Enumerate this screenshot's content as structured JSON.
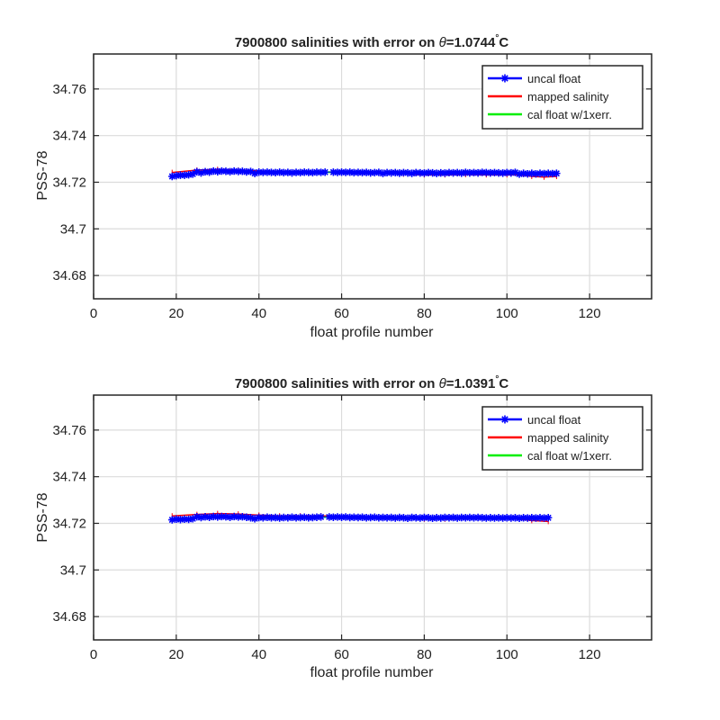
{
  "chart_data": [
    {
      "type": "line",
      "title_prefix": "7900800 salinities with error on ",
      "title_theta": "θ",
      "title_value": "=1.0744",
      "title_deg": "°",
      "title_unit": "C",
      "xlabel": "float profile number",
      "ylabel": "PSS-78",
      "xlim": [
        0,
        135
      ],
      "ylim": [
        34.67,
        34.775
      ],
      "x_ticks": [
        0,
        20,
        40,
        60,
        80,
        100,
        120
      ],
      "x_tick_labels": [
        "0",
        "20",
        "40",
        "60",
        "80",
        "100",
        "120"
      ],
      "y_ticks": [
        34.68,
        34.7,
        34.72,
        34.74,
        34.76
      ],
      "y_tick_labels": [
        "34.68",
        "34.7",
        "34.72",
        "34.74",
        "34.76"
      ],
      "grid": true,
      "legend_position": "top-right",
      "series": [
        {
          "name": "uncal float",
          "color": "#0000ff",
          "marker": "asterisk",
          "segments": [
            {
              "x": [
                19,
                20,
                21,
                22,
                23,
                24,
                25,
                26,
                27,
                28,
                29,
                30,
                31,
                32,
                33,
                34,
                35,
                36,
                37,
                38,
                39,
                40,
                41,
                42,
                43,
                44,
                45,
                46,
                47,
                48,
                49,
                50,
                51,
                52,
                53,
                54,
                55,
                56
              ],
              "y": [
                34.7225,
                34.7228,
                34.723,
                34.723,
                34.7232,
                34.7235,
                34.7245,
                34.724,
                34.7245,
                34.7243,
                34.7248,
                34.7245,
                34.7248,
                34.7247,
                34.7245,
                34.7248,
                34.7246,
                34.7247,
                34.7244,
                34.7246,
                34.7238,
                34.7243,
                34.7242,
                34.7243,
                34.7242,
                34.7241,
                34.7243,
                34.7241,
                34.7242,
                34.724,
                34.7242,
                34.7241,
                34.7243,
                34.7242,
                34.7241,
                34.7243,
                34.7242,
                34.7243
              ]
            },
            {
              "x": [
                58,
                59,
                60,
                61,
                62,
                63,
                64,
                65,
                66,
                67,
                68,
                69,
                70,
                71,
                72,
                73,
                74,
                75,
                76,
                77,
                78,
                79,
                80,
                81,
                82,
                83,
                84,
                85,
                86,
                87,
                88,
                89,
                90,
                91,
                92,
                93,
                94,
                95,
                96,
                97,
                98,
                99,
                100,
                101,
                102,
                103,
                104,
                105,
                106,
                107,
                108,
                109,
                110,
                111,
                112
              ],
              "y": [
                34.7243,
                34.7242,
                34.7243,
                34.7242,
                34.7243,
                34.7241,
                34.7242,
                34.7241,
                34.7242,
                34.724,
                34.7241,
                34.7242,
                34.7238,
                34.7241,
                34.724,
                34.7241,
                34.7239,
                34.7241,
                34.724,
                34.7238,
                34.7241,
                34.724,
                34.7239,
                34.7241,
                34.724,
                34.7238,
                34.724,
                34.7239,
                34.7241,
                34.724,
                34.7241,
                34.7239,
                34.7242,
                34.724,
                34.7241,
                34.724,
                34.7242,
                34.7241,
                34.724,
                34.7241,
                34.724,
                34.7239,
                34.7241,
                34.724,
                34.7242,
                34.7235,
                34.7238,
                34.7236,
                34.7238,
                34.7236,
                34.7238,
                34.7237,
                34.7238,
                34.7237,
                34.7238
              ]
            }
          ]
        },
        {
          "name": "mapped salinity",
          "color": "#ff0000",
          "x": [
            19,
            25,
            30,
            35,
            40,
            45,
            50,
            55,
            60,
            65,
            70,
            75,
            80,
            85,
            90,
            95,
            100,
            103,
            106,
            109,
            112
          ],
          "y": [
            34.7242,
            34.7252,
            34.7255,
            34.7252,
            34.7248,
            34.7246,
            34.7245,
            34.7244,
            34.7243,
            34.724,
            34.7238,
            34.7235,
            34.7232,
            34.7232,
            34.7233,
            34.7232,
            34.7232,
            34.7232,
            34.7225,
            34.7222,
            34.7225
          ]
        },
        {
          "name": "cal float w/1xerr.",
          "color": "#00ee00",
          "x": [
            56,
            57,
            58
          ],
          "y": [
            34.7243,
            34.7243,
            34.7243
          ]
        }
      ]
    },
    {
      "type": "line",
      "title_prefix": "7900800 salinities with error on ",
      "title_theta": "θ",
      "title_value": "=1.0391",
      "title_deg": "°",
      "title_unit": "C",
      "xlabel": "float profile number",
      "ylabel": "PSS-78",
      "xlim": [
        0,
        135
      ],
      "ylim": [
        34.67,
        34.775
      ],
      "x_ticks": [
        0,
        20,
        40,
        60,
        80,
        100,
        120
      ],
      "x_tick_labels": [
        "0",
        "20",
        "40",
        "60",
        "80",
        "100",
        "120"
      ],
      "y_ticks": [
        34.68,
        34.7,
        34.72,
        34.74,
        34.76
      ],
      "y_tick_labels": [
        "34.68",
        "34.7",
        "34.72",
        "34.74",
        "34.76"
      ],
      "grid": true,
      "legend_position": "top-right",
      "series": [
        {
          "name": "uncal float",
          "color": "#0000ff",
          "marker": "asterisk",
          "segments": [
            {
              "x": [
                19,
                20,
                21,
                22,
                23,
                24,
                25,
                26,
                27,
                28,
                29,
                30,
                31,
                32,
                33,
                34,
                35,
                36,
                37,
                38,
                39,
                40,
                41,
                42,
                43,
                44,
                45,
                46,
                47,
                48,
                49,
                50,
                51,
                52,
                53,
                54,
                55
              ],
              "y": [
                34.7215,
                34.7218,
                34.7216,
                34.7218,
                34.7217,
                34.722,
                34.7228,
                34.7225,
                34.7228,
                34.7226,
                34.7229,
                34.7227,
                34.7229,
                34.7228,
                34.7226,
                34.7229,
                34.7227,
                34.7228,
                34.7226,
                34.7224,
                34.722,
                34.7225,
                34.7224,
                34.7226,
                34.7224,
                34.7225,
                34.7223,
                34.7225,
                34.7224,
                34.7226,
                34.7224,
                34.7225,
                34.7226,
                34.7224,
                34.7225,
                34.7226,
                34.7227
              ]
            },
            {
              "x": [
                57,
                58,
                59,
                60,
                61,
                62,
                63,
                64,
                65,
                66,
                67,
                68,
                69,
                70,
                71,
                72,
                73,
                74,
                75,
                76,
                77,
                78,
                79,
                80,
                81,
                82,
                83,
                84,
                85,
                86,
                87,
                88,
                89,
                90,
                91,
                92,
                93,
                94,
                95,
                96,
                97,
                98,
                99,
                100,
                101,
                102,
                103,
                104,
                105,
                106,
                107,
                108,
                109,
                110
              ],
              "y": [
                34.7227,
                34.7226,
                34.7227,
                34.7226,
                34.7227,
                34.7225,
                34.7226,
                34.7225,
                34.7226,
                34.7224,
                34.7225,
                34.7226,
                34.7224,
                34.7225,
                34.7224,
                34.7225,
                34.7223,
                34.7225,
                34.7224,
                34.7222,
                34.7225,
                34.7224,
                34.7223,
                34.7225,
                34.7224,
                34.7222,
                34.7224,
                34.7223,
                34.7225,
                34.7224,
                34.7225,
                34.7223,
                34.7225,
                34.7224,
                34.7225,
                34.7224,
                34.7225,
                34.7224,
                34.7223,
                34.7224,
                34.7223,
                34.7224,
                34.7223,
                34.7224,
                34.7223,
                34.7224,
                34.7222,
                34.7224,
                34.7223,
                34.7224,
                34.7223,
                34.7224,
                34.7223,
                34.7224
              ]
            }
          ]
        },
        {
          "name": "mapped salinity",
          "color": "#ff0000",
          "x": [
            19,
            25,
            30,
            35,
            40,
            45,
            50,
            55,
            60,
            65,
            70,
            75,
            80,
            85,
            90,
            95,
            100,
            103,
            106,
            110
          ],
          "y": [
            34.7232,
            34.7238,
            34.7242,
            34.724,
            34.7235,
            34.7232,
            34.7232,
            34.7232,
            34.7231,
            34.7228,
            34.7225,
            34.7222,
            34.7218,
            34.7218,
            34.722,
            34.722,
            34.722,
            34.7218,
            34.7212,
            34.7208
          ]
        },
        {
          "name": "cal float w/1xerr.",
          "color": "#00ee00",
          "x": [
            55,
            56,
            57
          ],
          "y": [
            34.7227,
            34.7227,
            34.7227
          ]
        }
      ]
    }
  ]
}
